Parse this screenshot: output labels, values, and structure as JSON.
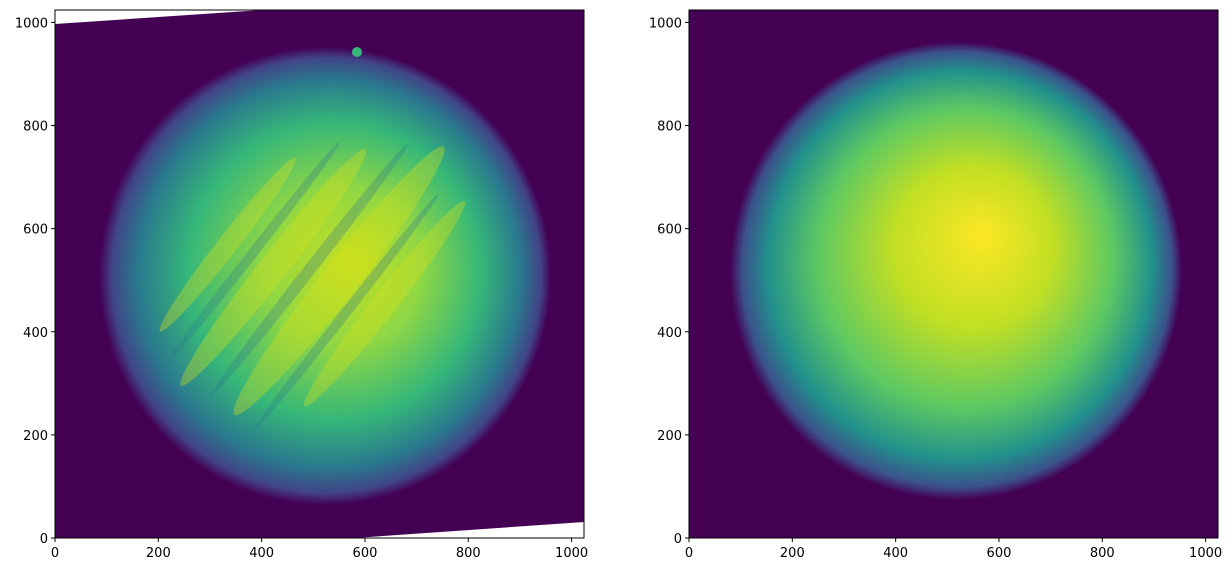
{
  "chart_data": [
    {
      "type": "image",
      "xlim": [
        0,
        1024
      ],
      "ylim": [
        0,
        1024
      ],
      "xticks": [
        0,
        200,
        400,
        600,
        800,
        1000
      ],
      "yticks": [
        0,
        200,
        400,
        600,
        800,
        1000
      ]
    },
    {
      "type": "image",
      "xlim": [
        0,
        1024
      ],
      "ylim": [
        0,
        1024
      ],
      "xticks": [
        0,
        200,
        400,
        600,
        800,
        1000
      ],
      "yticks": [
        0,
        200,
        400,
        600,
        800,
        1000
      ]
    }
  ]
}
